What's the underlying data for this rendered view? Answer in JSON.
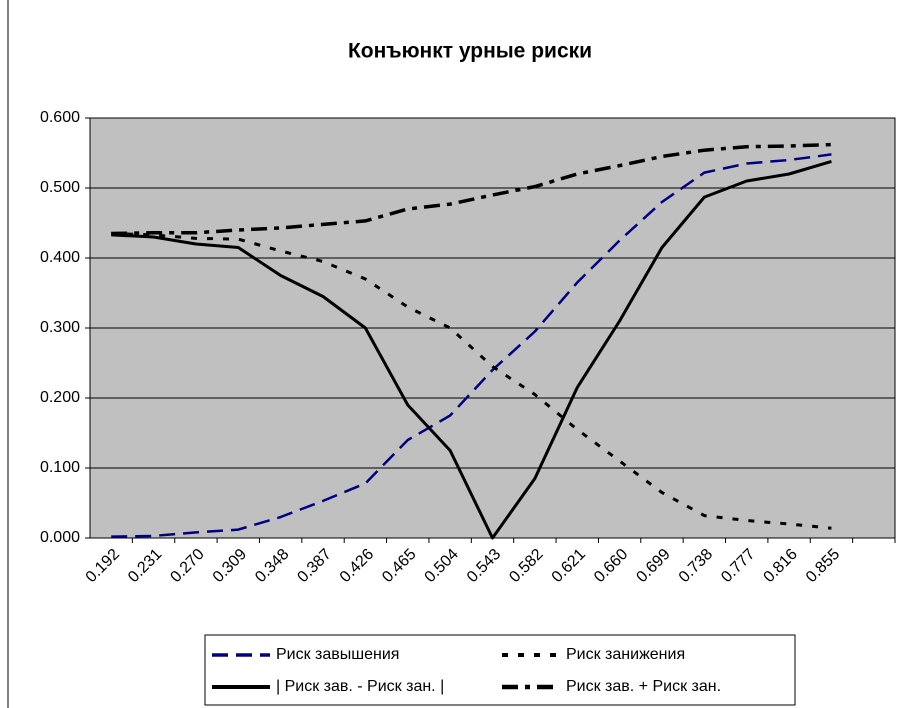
{
  "chart_data": {
    "type": "line",
    "title": "Конъюнкт урные риски",
    "categories": [
      "0.192",
      "0.231",
      "0.270",
      "0.309",
      "0.348",
      "0.387",
      "0.426",
      "0.465",
      "0.504",
      "0.543",
      "0.582",
      "0.621",
      "0.660",
      "0.699",
      "0.738",
      "0.777",
      "0.816",
      "0.855",
      null
    ],
    "series": [
      {
        "name": "Риск завышения",
        "color": "#000080",
        "line_style": "dash",
        "values": [
          0.002,
          0.003,
          0.008,
          0.012,
          0.03,
          0.053,
          0.078,
          0.14,
          0.175,
          0.24,
          0.295,
          0.365,
          0.425,
          0.48,
          0.522,
          0.535,
          0.54,
          0.548,
          null
        ]
      },
      {
        "name": "Риск занижения",
        "color": "#000000",
        "line_style": "dot",
        "values": [
          0.435,
          0.433,
          0.428,
          0.427,
          0.41,
          0.395,
          0.37,
          0.33,
          0.3,
          0.245,
          0.205,
          0.155,
          0.11,
          0.065,
          0.032,
          0.025,
          0.02,
          0.014,
          null
        ]
      },
      {
        "name": "| Риск зав. - Риск зан. |",
        "color": "#000000",
        "line_style": "solid",
        "values": [
          0.433,
          0.43,
          0.42,
          0.415,
          0.375,
          0.345,
          0.3,
          0.19,
          0.125,
          0.0,
          0.085,
          0.215,
          0.31,
          0.415,
          0.487,
          0.51,
          0.52,
          0.538,
          null
        ]
      },
      {
        "name": "Риск зав. + Риск зан.",
        "color": "#000000",
        "line_style": "dashdot",
        "values": [
          0.435,
          0.436,
          0.436,
          0.44,
          0.443,
          0.448,
          0.453,
          0.47,
          0.477,
          0.49,
          0.502,
          0.52,
          0.532,
          0.545,
          0.554,
          0.559,
          0.56,
          0.562,
          null
        ]
      }
    ],
    "ylim": [
      0,
      0.6
    ],
    "yticks": [
      {
        "value": 0,
        "label": "0.000"
      },
      {
        "value": 0.1,
        "label": "0.100"
      },
      {
        "value": 0.2,
        "label": "0.200"
      },
      {
        "value": 0.3,
        "label": "0.300"
      },
      {
        "value": 0.4,
        "label": "0.400"
      },
      {
        "value": 0.5,
        "label": "0.500"
      },
      {
        "value": 0.6,
        "label": "0.600"
      }
    ],
    "grid": true,
    "legend": "bottom",
    "plot_background": "#c0c0c0"
  }
}
